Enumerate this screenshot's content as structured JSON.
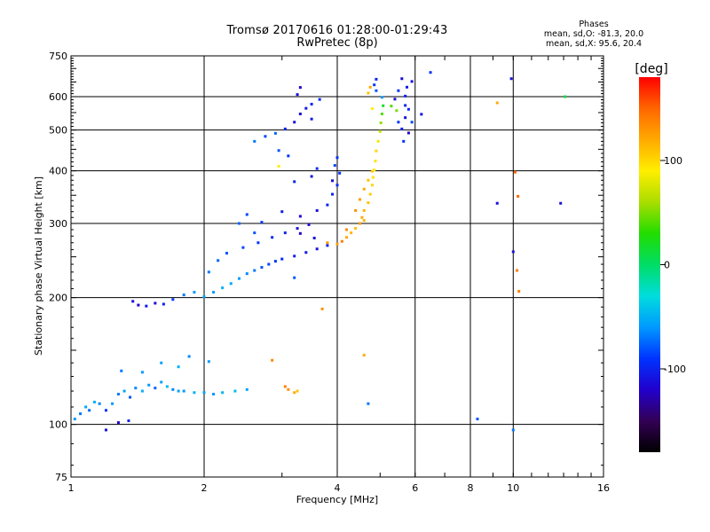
{
  "header": {
    "title": "Tromsø 20170616 01:28:00-01:29:43",
    "subtitle": "RwPretec (8p)",
    "stats_title": "Phases",
    "stats_o": "mean, sd,O: -81.3, 20.0",
    "stats_x": "mean, sd,X: 95.6, 20.4"
  },
  "colorbar": {
    "label": "[deg]",
    "ticks": [
      100,
      0,
      -100
    ],
    "range": [
      -180,
      180
    ],
    "colors": [
      "#000000",
      "#330055",
      "#2200cc",
      "#0033ff",
      "#0099ff",
      "#00dddd",
      "#00dd66",
      "#22dd00",
      "#aadd00",
      "#ffee00",
      "#ffaa00",
      "#ff6600",
      "#ff0000"
    ]
  },
  "chart_data": {
    "type": "scatter",
    "title": "Tromsø 20170616 01:28:00-01:29:43",
    "subtitle": "RwPretec (8p)",
    "xlabel": "Frequency [MHz]",
    "ylabel": "Stationary phase Virtual Height [km]",
    "x_scale": "log",
    "y_scale": "log",
    "xlim": [
      1,
      16
    ],
    "ylim": [
      75,
      750
    ],
    "x_ticks": [
      1,
      2,
      4,
      6,
      8,
      10,
      16
    ],
    "y_ticks": [
      75,
      100,
      200,
      300,
      400,
      500,
      600,
      750
    ],
    "grid": true,
    "color_by": "phase (deg)",
    "series": [
      {
        "points": [
          [
            1.02,
            103,
            -60
          ],
          [
            1.05,
            106,
            -70
          ],
          [
            1.08,
            110,
            -55
          ],
          [
            1.1,
            108,
            -75
          ],
          [
            1.13,
            113,
            -50
          ],
          [
            1.16,
            112,
            -65
          ],
          [
            1.2,
            108,
            -90
          ],
          [
            1.24,
            112,
            -60
          ],
          [
            1.28,
            118,
            -70
          ],
          [
            1.32,
            120,
            -55
          ],
          [
            1.36,
            116,
            -80
          ],
          [
            1.4,
            122,
            -65
          ],
          [
            1.45,
            120,
            -50
          ],
          [
            1.5,
            124,
            -60
          ],
          [
            1.55,
            122,
            -75
          ],
          [
            1.6,
            126,
            -55
          ],
          [
            1.65,
            123,
            -45
          ],
          [
            1.7,
            121,
            -65
          ],
          [
            1.75,
            120,
            -55
          ],
          [
            1.8,
            120,
            -60
          ],
          [
            1.9,
            119,
            -50
          ],
          [
            2.0,
            119,
            -55
          ],
          [
            2.1,
            118,
            -60
          ],
          [
            2.2,
            119,
            -50
          ],
          [
            2.35,
            120,
            -45
          ],
          [
            2.5,
            121,
            -55
          ],
          [
            1.3,
            134,
            -70
          ],
          [
            1.45,
            133,
            -60
          ],
          [
            1.6,
            140,
            -55
          ],
          [
            1.75,
            137,
            -50
          ],
          [
            1.85,
            145,
            -65
          ],
          [
            2.05,
            141,
            -60
          ],
          [
            1.2,
            97,
            -110
          ],
          [
            1.28,
            101,
            -120
          ],
          [
            1.35,
            102,
            -100
          ],
          [
            3.1,
            121,
            130
          ],
          [
            3.2,
            119,
            120
          ],
          [
            3.25,
            120,
            110
          ],
          [
            3.05,
            123,
            140
          ],
          [
            2.85,
            142,
            135
          ],
          [
            1.38,
            196,
            -110
          ],
          [
            1.42,
            192,
            -120
          ],
          [
            1.48,
            191,
            -105
          ],
          [
            1.55,
            194,
            -115
          ],
          [
            1.62,
            193,
            -100
          ],
          [
            1.7,
            198,
            -90
          ],
          [
            1.8,
            203,
            -70
          ],
          [
            1.9,
            206,
            -60
          ],
          [
            2.0,
            201,
            -55
          ],
          [
            2.1,
            206,
            -60
          ],
          [
            2.2,
            211,
            -50
          ],
          [
            2.3,
            216,
            -55
          ],
          [
            2.4,
            222,
            -60
          ],
          [
            2.5,
            228,
            -65
          ],
          [
            2.6,
            232,
            -70
          ],
          [
            2.7,
            236,
            -80
          ],
          [
            2.8,
            240,
            -85
          ],
          [
            2.9,
            244,
            -90
          ],
          [
            3.0,
            247,
            -95
          ],
          [
            3.2,
            251,
            -100
          ],
          [
            3.4,
            256,
            -105
          ],
          [
            3.6,
            261,
            -110
          ],
          [
            3.8,
            266,
            -100
          ],
          [
            2.05,
            230,
            -70
          ],
          [
            2.15,
            245,
            -75
          ],
          [
            2.25,
            255,
            -80
          ],
          [
            2.45,
            263,
            -85
          ],
          [
            2.65,
            270,
            -90
          ],
          [
            2.85,
            278,
            -95
          ],
          [
            3.05,
            285,
            -100
          ],
          [
            3.25,
            292,
            -110
          ],
          [
            3.45,
            298,
            -115
          ],
          [
            3.3,
            284,
            -120
          ],
          [
            3.55,
            277,
            -110
          ],
          [
            2.6,
            285,
            -80
          ],
          [
            2.4,
            300,
            -75
          ],
          [
            2.7,
            302,
            -90
          ],
          [
            2.5,
            315,
            -85
          ],
          [
            3.0,
            320,
            -105
          ],
          [
            3.3,
            312,
            -115
          ],
          [
            3.6,
            322,
            -110
          ],
          [
            3.8,
            332,
            -100
          ],
          [
            3.9,
            352,
            -100
          ],
          [
            4.0,
            370,
            -95
          ],
          [
            4.05,
            395,
            -90
          ],
          [
            3.95,
            412,
            -85
          ],
          [
            4.0,
            430,
            -90
          ],
          [
            3.5,
            388,
            -110
          ],
          [
            3.2,
            377,
            -100
          ],
          [
            3.6,
            405,
            -95
          ],
          [
            3.9,
            379,
            -110
          ],
          [
            2.6,
            470,
            -70
          ],
          [
            2.75,
            483,
            -85
          ],
          [
            2.9,
            491,
            -75
          ],
          [
            3.05,
            503,
            -100
          ],
          [
            3.2,
            522,
            -110
          ],
          [
            3.3,
            546,
            -115
          ],
          [
            3.4,
            563,
            -105
          ],
          [
            3.5,
            576,
            -100
          ],
          [
            3.65,
            591,
            -95
          ],
          [
            3.25,
            607,
            -110
          ],
          [
            3.3,
            631,
            -120
          ],
          [
            3.5,
            531,
            -105
          ],
          [
            2.95,
            447,
            -80
          ],
          [
            3.1,
            434,
            -90
          ],
          [
            3.8,
            270,
            130
          ],
          [
            4.0,
            268,
            125
          ],
          [
            4.1,
            272,
            140
          ],
          [
            4.2,
            278,
            120
          ],
          [
            4.3,
            285,
            115
          ],
          [
            4.4,
            292,
            110
          ],
          [
            4.5,
            300,
            125
          ],
          [
            4.55,
            310,
            120
          ],
          [
            4.6,
            322,
            115
          ],
          [
            4.7,
            336,
            110
          ],
          [
            4.75,
            352,
            105
          ],
          [
            4.8,
            370,
            100
          ],
          [
            4.82,
            386,
            95
          ],
          [
            4.85,
            402,
            90
          ],
          [
            4.88,
            422,
            95
          ],
          [
            4.9,
            446,
            100
          ],
          [
            4.95,
            470,
            85
          ],
          [
            5.0,
            496,
            70
          ],
          [
            5.02,
            520,
            55
          ],
          [
            5.05,
            546,
            40
          ],
          [
            5.08,
            571,
            20
          ],
          [
            5.05,
            598,
            -60
          ],
          [
            4.9,
            620,
            -80
          ],
          [
            4.85,
            640,
            -90
          ],
          [
            4.9,
            660,
            -100
          ],
          [
            4.4,
            322,
            130
          ],
          [
            4.5,
            342,
            125
          ],
          [
            4.6,
            362,
            120
          ],
          [
            4.7,
            380,
            110
          ],
          [
            4.8,
            399,
            105
          ],
          [
            4.75,
            632,
            120
          ],
          [
            4.7,
            612,
            110
          ],
          [
            4.8,
            562,
            90
          ],
          [
            4.6,
            305,
            115
          ],
          [
            4.2,
            290,
            135
          ],
          [
            5.3,
            570,
            40
          ],
          [
            5.45,
            556,
            50
          ],
          [
            5.5,
            522,
            -90
          ],
          [
            5.6,
            503,
            -100
          ],
          [
            5.7,
            535,
            -110
          ],
          [
            5.8,
            560,
            -95
          ],
          [
            5.7,
            602,
            -100
          ],
          [
            5.75,
            632,
            -105
          ],
          [
            5.9,
            652,
            -110
          ],
          [
            5.6,
            662,
            -115
          ],
          [
            5.5,
            620,
            -90
          ],
          [
            5.4,
            592,
            -110
          ],
          [
            5.7,
            572,
            -100
          ],
          [
            5.8,
            492,
            -120
          ],
          [
            5.65,
            470,
            -90
          ],
          [
            5.9,
            522,
            -85
          ],
          [
            6.2,
            545,
            -110
          ],
          [
            6.5,
            685,
            -90
          ],
          [
            9.2,
            580,
            120
          ],
          [
            9.9,
            662,
            -110
          ],
          [
            10.1,
            397,
            150
          ],
          [
            10.25,
            348,
            150
          ],
          [
            10.2,
            232,
            140
          ],
          [
            10.3,
            207,
            140
          ],
          [
            10.0,
            257,
            -110
          ],
          [
            9.2,
            335,
            -110
          ],
          [
            12.8,
            335,
            -110
          ],
          [
            13.1,
            600,
            10
          ],
          [
            8.3,
            103,
            -80
          ],
          [
            10.0,
            97,
            -70
          ],
          [
            3.7,
            188,
            130
          ],
          [
            4.6,
            146,
            120
          ],
          [
            4.7,
            112,
            -70
          ],
          [
            3.2,
            223,
            -80
          ],
          [
            2.95,
            410,
            90
          ]
        ]
      }
    ]
  }
}
